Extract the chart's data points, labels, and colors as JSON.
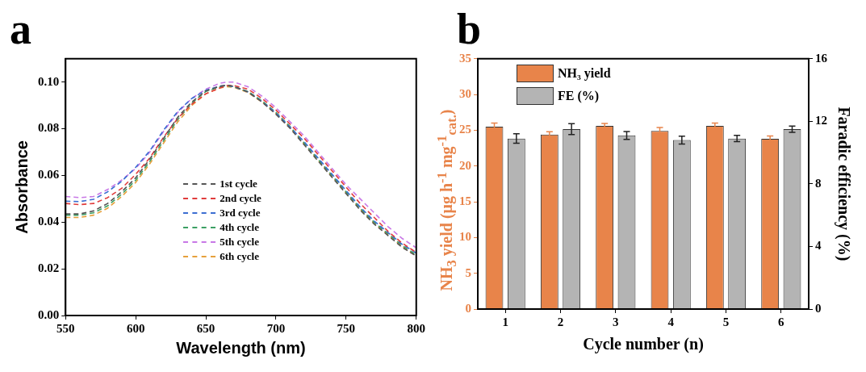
{
  "chart_data": [
    {
      "type": "line",
      "title": "a",
      "xlabel": "Wavelength (nm)",
      "ylabel": "Absorbance",
      "x": [
        550,
        560,
        570,
        580,
        590,
        600,
        610,
        620,
        630,
        640,
        650,
        660,
        665,
        670,
        680,
        690,
        700,
        710,
        720,
        730,
        740,
        750,
        760,
        770,
        780,
        790,
        800
      ],
      "xlim": [
        550,
        800
      ],
      "xticks": [
        550,
        600,
        650,
        700,
        750,
        800
      ],
      "ylim": [
        0,
        0.11
      ],
      "yticks": [
        {
          "value": 0,
          "label": "0.00"
        },
        {
          "value": 0.02,
          "label": "0.02"
        },
        {
          "value": 0.04,
          "label": "0.04"
        },
        {
          "value": 0.06,
          "label": "0.06"
        },
        {
          "value": 0.08,
          "label": "0.08"
        },
        {
          "value": 0.1,
          "label": "0.10"
        }
      ],
      "legend": "bottom",
      "line_style": "dashed",
      "marker": "none",
      "grid": false,
      "series": [
        {
          "name": "1st cycle",
          "color": "#555555",
          "values": [
            0.0435,
            0.0435,
            0.0448,
            0.048,
            0.053,
            0.059,
            0.067,
            0.076,
            0.085,
            0.0915,
            0.0962,
            0.0982,
            0.0987,
            0.0982,
            0.0958,
            0.0915,
            0.0862,
            0.0802,
            0.0732,
            0.0662,
            0.0592,
            0.0522,
            0.0452,
            0.0392,
            0.0342,
            0.0292,
            0.0255
          ]
        },
        {
          "name": "2nd cycle",
          "color": "#e03c3c",
          "values": [
            0.048,
            0.0475,
            0.048,
            0.0505,
            0.0545,
            0.0605,
            0.0675,
            0.0765,
            0.0845,
            0.0905,
            0.095,
            0.0975,
            0.0985,
            0.0985,
            0.097,
            0.093,
            0.088,
            0.082,
            0.076,
            0.069,
            0.062,
            0.055,
            0.048,
            0.042,
            0.036,
            0.031,
            0.027
          ]
        },
        {
          "name": "3rd cycle",
          "color": "#3c6ed2",
          "values": [
            0.049,
            0.0488,
            0.0498,
            0.053,
            0.0575,
            0.0635,
            0.0705,
            0.0795,
            0.0875,
            0.093,
            0.0965,
            0.0983,
            0.0985,
            0.098,
            0.0958,
            0.0917,
            0.0867,
            0.0807,
            0.0745,
            0.0675,
            0.0605,
            0.0535,
            0.0465,
            0.0405,
            0.0355,
            0.0305,
            0.0268
          ]
        },
        {
          "name": "4th cycle",
          "color": "#3ca064",
          "values": [
            0.043,
            0.043,
            0.044,
            0.047,
            0.052,
            0.058,
            0.066,
            0.075,
            0.084,
            0.091,
            0.096,
            0.098,
            0.0985,
            0.098,
            0.096,
            0.092,
            0.087,
            0.081,
            0.074,
            0.067,
            0.06,
            0.053,
            0.046,
            0.04,
            0.035,
            0.03,
            0.026
          ]
        },
        {
          "name": "5th cycle",
          "color": "#c878e6",
          "values": [
            0.051,
            0.0505,
            0.051,
            0.054,
            0.058,
            0.063,
            0.07,
            0.079,
            0.087,
            0.093,
            0.097,
            0.0995,
            0.1,
            0.1,
            0.098,
            0.094,
            0.089,
            0.083,
            0.077,
            0.07,
            0.063,
            0.056,
            0.05,
            0.044,
            0.038,
            0.033,
            0.029
          ]
        },
        {
          "name": "6th cycle",
          "color": "#e6a03c",
          "values": [
            0.042,
            0.042,
            0.043,
            0.046,
            0.051,
            0.057,
            0.065,
            0.074,
            0.083,
            0.09,
            0.095,
            0.0975,
            0.098,
            0.0978,
            0.0955,
            0.0915,
            0.0865,
            0.0805,
            0.0735,
            0.0665,
            0.0595,
            0.0525,
            0.0455,
            0.0395,
            0.0345,
            0.0295,
            0.0255
          ]
        }
      ]
    },
    {
      "type": "bar",
      "title": "b",
      "xlabel": "Cycle number (n)",
      "ylabel": "NH$_{3}$ yield (μg h$^{-1}$ mg$^{-1}$$_{cat.}$)",
      "y2label": "Faradic efficiency (%)",
      "categories": [
        "1",
        "2",
        "3",
        "4",
        "5",
        "6"
      ],
      "ylim": [
        0,
        35
      ],
      "yticks": [
        0,
        5,
        10,
        15,
        20,
        25,
        30,
        35
      ],
      "y2lim": [
        0,
        16
      ],
      "y2ticks": [
        0,
        4,
        8,
        12,
        16
      ],
      "legend": "top left",
      "grid": false,
      "series": [
        {
          "name": "NH₃ yield",
          "color": "#e8844a",
          "values": [
            25.5,
            24.4,
            25.6,
            24.9,
            25.6,
            23.8
          ],
          "errors": [
            0.5,
            0.4,
            0.35,
            0.5,
            0.4,
            0.4
          ]
        },
        {
          "name": "FE (%)",
          "color": "#b4b4b4",
          "axis": "y2",
          "values": [
            10.9,
            11.5,
            11.1,
            10.8,
            10.9,
            11.5
          ],
          "errors": [
            0.3,
            0.35,
            0.25,
            0.25,
            0.2,
            0.2
          ]
        }
      ]
    }
  ]
}
